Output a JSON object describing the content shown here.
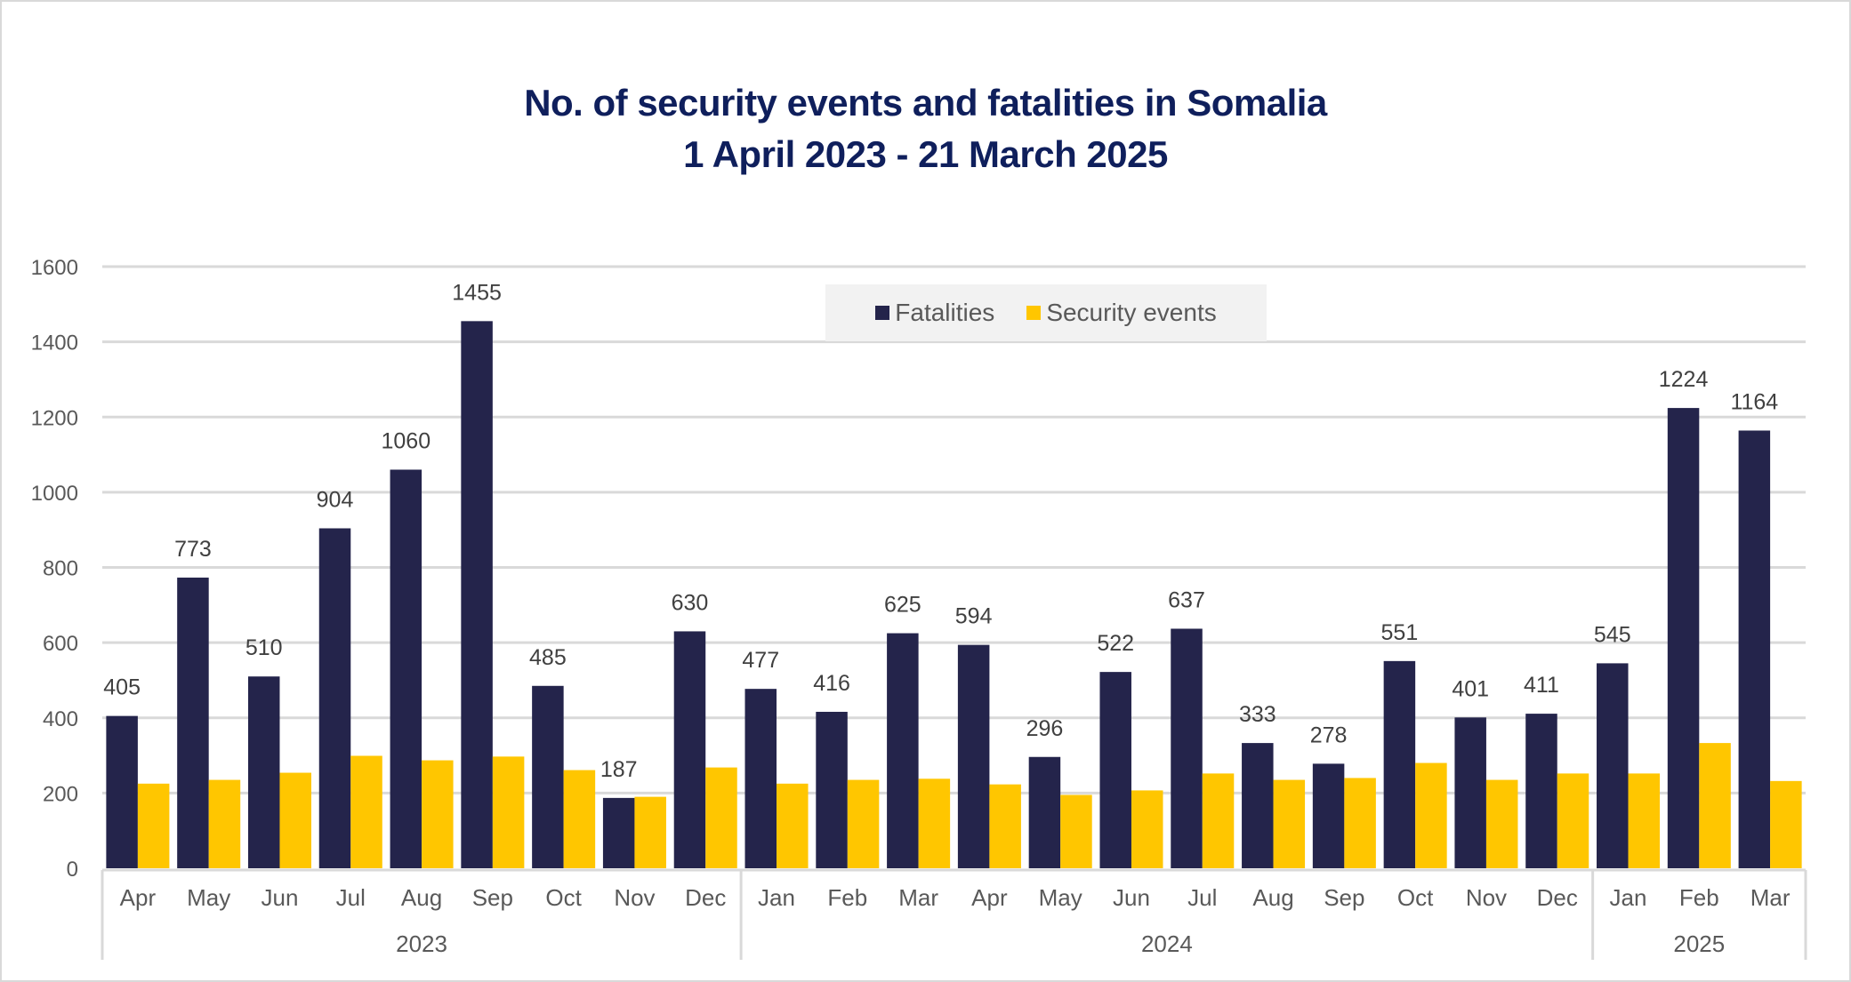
{
  "chart_data": {
    "type": "bar",
    "title": "No. of security events and fatalities in Somalia",
    "subtitle": "1 April 2023 - 21 March 2025",
    "xlabel": "",
    "ylabel": "",
    "ylim": [
      0,
      1600
    ],
    "yticks": [
      0,
      200,
      400,
      600,
      800,
      1000,
      1200,
      1400,
      1600
    ],
    "grid": true,
    "legend_position": "top-center",
    "categories": [
      "Apr",
      "May",
      "Jun",
      "Jul",
      "Aug",
      "Sep",
      "Oct",
      "Nov",
      "Dec",
      "Jan",
      "Feb",
      "Mar",
      "Apr",
      "May",
      "Jun",
      "Jul",
      "Aug",
      "Sep",
      "Oct",
      "Nov",
      "Dec",
      "Jan",
      "Feb",
      "Mar"
    ],
    "category_groups": [
      {
        "label": "2023",
        "count": 9
      },
      {
        "label": "2024",
        "count": 12
      },
      {
        "label": "2025",
        "count": 3
      }
    ],
    "series": [
      {
        "name": "Fatalities",
        "color": "#24244b",
        "show_labels": true,
        "values": [
          405,
          773,
          510,
          904,
          1060,
          1455,
          485,
          187,
          630,
          477,
          416,
          625,
          594,
          296,
          522,
          637,
          333,
          278,
          551,
          401,
          411,
          545,
          1224,
          1164
        ]
      },
      {
        "name": "Security events",
        "color": "#ffc600",
        "show_labels": false,
        "values": [
          225,
          235,
          254,
          299,
          287,
          297,
          261,
          190,
          268,
          225,
          235,
          238,
          223,
          195,
          207,
          252,
          235,
          240,
          280,
          235,
          252,
          252,
          333,
          232
        ]
      }
    ]
  },
  "colors": {
    "title": "#0f1f5c",
    "grid": "#d9d9d9",
    "legend_bg": "#f2f2f2"
  }
}
